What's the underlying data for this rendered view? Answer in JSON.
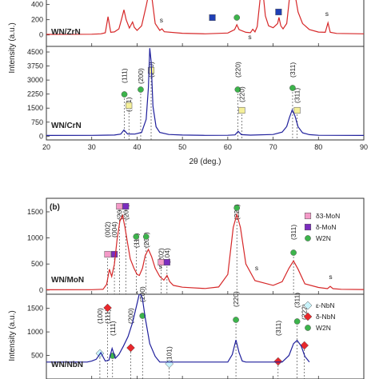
{
  "chart_data": [
    {
      "panel": "top",
      "type": "line",
      "sample_label": "WN/ZrN",
      "xlabel": "",
      "ylabel": "",
      "xlim": [
        20,
        90
      ],
      "ylim": [
        -150,
        480
      ],
      "yticks": [
        0,
        200,
        400
      ],
      "line_color": "#d62728",
      "series": [
        {
          "x": [
            20,
            30,
            32,
            33,
            33.6,
            34.2,
            35,
            36,
            36.6,
            37.1,
            37.6,
            38.3,
            39,
            39.4,
            40,
            41,
            42,
            42.5,
            42.9,
            43.3,
            44,
            45,
            45.5,
            46,
            50,
            55,
            60,
            61.5,
            62,
            62.5,
            64,
            65,
            65.5,
            66,
            66.5,
            67,
            67.4,
            67.8,
            68.3,
            69,
            70,
            71,
            71.3,
            71.7,
            72.2,
            73,
            73.6,
            74.2,
            74.8,
            75.5,
            76.5,
            78,
            80,
            81.5,
            82.1,
            82.6,
            84,
            90
          ],
          "y": [
            8,
            10,
            15,
            28,
            240,
            35,
            40,
            80,
            210,
            330,
            200,
            90,
            170,
            100,
            60,
            120,
            380,
            520,
            590,
            480,
            150,
            60,
            80,
            42,
            22,
            15,
            25,
            70,
            135,
            70,
            35,
            30,
            75,
            40,
            110,
            400,
            620,
            540,
            250,
            120,
            95,
            150,
            230,
            120,
            80,
            150,
            480,
            620,
            540,
            300,
            150,
            70,
            38,
            35,
            160,
            35,
            20,
            15
          ]
        }
      ]
    },
    {
      "panel": "top-lower",
      "type": "line",
      "sample_label": "WN/CrN",
      "xlabel": "2θ (deg.)",
      "ylabel": "Intensity (a.u.)",
      "xlim": [
        20,
        90
      ],
      "ylim": [
        -200,
        4800
      ],
      "yticks": [
        0,
        750,
        1500,
        2250,
        3000,
        3750,
        4500
      ],
      "xticks": [
        20,
        30,
        40,
        50,
        60,
        70,
        80,
        90
      ],
      "line_color": "#1f1f9c",
      "annotations": [
        {
          "x": 37.2,
          "text": "(111)"
        },
        {
          "x": 38.2,
          "text": "(111)"
        },
        {
          "x": 40.8,
          "text": "(200)"
        },
        {
          "x": 43.1,
          "text": "(200)"
        },
        {
          "x": 62.2,
          "text": "(220)"
        },
        {
          "x": 63.1,
          "text": "(220)"
        },
        {
          "x": 74.3,
          "text": "(311)"
        },
        {
          "x": 75.3,
          "text": "(311)"
        }
      ],
      "series": [
        {
          "x": [
            20,
            30,
            35,
            36.4,
            37.1,
            37.9,
            39.5,
            41,
            42,
            42.5,
            42.8,
            43.1,
            43.5,
            44.2,
            45,
            47,
            50,
            55,
            60,
            61.6,
            62.3,
            63,
            65,
            70,
            72,
            73,
            73.6,
            74.2,
            74.8,
            75.5,
            76.5,
            78,
            80,
            85,
            90
          ],
          "y": [
            40,
            45,
            60,
            110,
            330,
            120,
            110,
            200,
            900,
            2600,
            4700,
            4000,
            1600,
            500,
            200,
            90,
            60,
            45,
            50,
            70,
            260,
            80,
            55,
            90,
            220,
            520,
            1000,
            1400,
            1100,
            500,
            180,
            80,
            50,
            42,
            40
          ]
        }
      ]
    },
    {
      "panel": "b",
      "type": "line",
      "panel_label": "(b)",
      "sample_label": "WN/MoN",
      "xlim": [
        20,
        90
      ],
      "ylim": [
        -80,
        1760
      ],
      "yticks": [
        0,
        500,
        1000,
        1500
      ],
      "line_color": "#d62728",
      "legend": [
        "δ3-MoN",
        "δ-MoN",
        "W2N"
      ],
      "annotations": [
        {
          "x": 33.5,
          "text": "(002)"
        },
        {
          "x": 35.0,
          "text": "(004)"
        },
        {
          "x": 36.1,
          "text": "(200)"
        },
        {
          "x": 37.5,
          "text": "(200)"
        },
        {
          "x": 39.8,
          "text": "(111)"
        },
        {
          "x": 42.0,
          "text": "(200)"
        },
        {
          "x": 45.3,
          "text": "(202)"
        },
        {
          "x": 46.6,
          "text": "(104)"
        },
        {
          "x": 62.0,
          "text": "(220)"
        },
        {
          "x": 74.5,
          "text": "(311)"
        }
      ],
      "series": [
        {
          "x": [
            20,
            30,
            32.5,
            33.3,
            33.9,
            34.4,
            35,
            35.6,
            36.2,
            36.8,
            37.3,
            38,
            38.5,
            39.3,
            40,
            40.5,
            41.2,
            41.8,
            42.5,
            43.2,
            44,
            45,
            45.9,
            46.6,
            47.2,
            48,
            50,
            55,
            58,
            60,
            61.2,
            62,
            62.8,
            64,
            66,
            70,
            72,
            73.5,
            74.5,
            75.5,
            77,
            80,
            82,
            82.6,
            83.2,
            85,
            90
          ],
          "y": [
            6,
            8,
            15,
            110,
            400,
            260,
            500,
            980,
            1320,
            1430,
            1220,
            850,
            600,
            420,
            300,
            280,
            420,
            660,
            780,
            640,
            420,
            260,
            190,
            280,
            160,
            90,
            55,
            30,
            60,
            300,
            1200,
            1450,
            1200,
            500,
            180,
            90,
            160,
            420,
            560,
            400,
            120,
            50,
            28,
            70,
            28,
            15,
            10
          ]
        }
      ]
    },
    {
      "panel": "b-lower",
      "type": "line",
      "sample_label": "WN/NbN",
      "ylabel": "Intensity (a.u.)",
      "xlim": [
        20,
        90
      ],
      "ylim": [
        0,
        1800
      ],
      "yticks": [
        500,
        1000,
        1500
      ],
      "line_color": "#1f1f9c",
      "legend": [
        "ε-NbN",
        "δ-NbN",
        "W2N"
      ],
      "annotations": [
        {
          "x": 31.8,
          "text": "(100)"
        },
        {
          "x": 33.5,
          "text": "(111)"
        },
        {
          "x": 34.6,
          "text": "(111)"
        },
        {
          "x": 38.6,
          "text": "(200)"
        },
        {
          "x": 41.2,
          "text": "(200)"
        },
        {
          "x": 47.1,
          "text": "(101)"
        },
        {
          "x": 61.8,
          "text": "(220)"
        },
        {
          "x": 71.1,
          "text": "(311)"
        },
        {
          "x": 75.3,
          "text": "(311)"
        },
        {
          "x": 76.9,
          "text": "(222)"
        }
      ],
      "series": [
        {
          "x": [
            20,
            29,
            30,
            31,
            32,
            33,
            33.8,
            34.5,
            35.2,
            36,
            37,
            38,
            39,
            40,
            40.6,
            41.2,
            41.8,
            42.8,
            44,
            45,
            60,
            61,
            61.8,
            62.5,
            63.2,
            64,
            72,
            73.5,
            74.5,
            75.3,
            76.2,
            77,
            78
          ],
          "y": [
            360,
            360,
            380,
            420,
            560,
            380,
            400,
            650,
            440,
            520,
            700,
            900,
            1200,
            1600,
            1850,
            1700,
            1300,
            750,
            480,
            360,
            360,
            520,
            830,
            560,
            380,
            360,
            360,
            500,
            750,
            820,
            700,
            480,
            360
          ]
        }
      ]
    }
  ]
}
